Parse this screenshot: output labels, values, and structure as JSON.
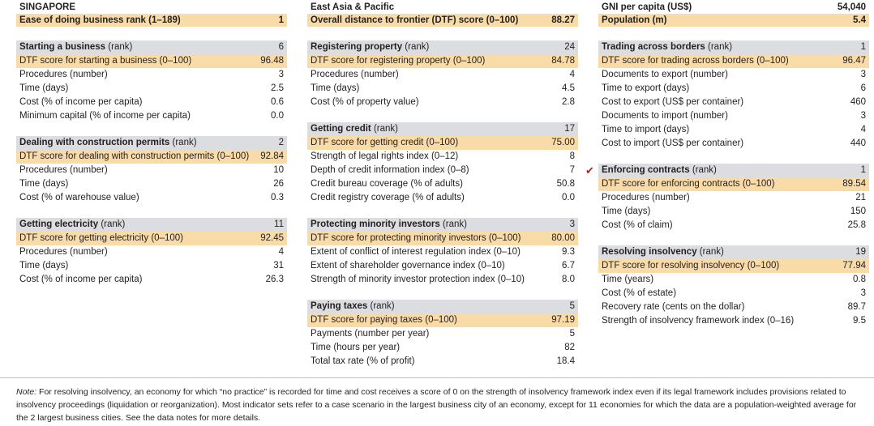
{
  "header": {
    "left": {
      "name": "SINGAPORE",
      "row2_label": "Ease of doing business rank (1–189)",
      "row2_value": "1"
    },
    "middle": {
      "name": "East Asia & Pacific",
      "row2_label": "Overall distance to frontier (DTF) score (0–100)",
      "row2_value": "88.27"
    },
    "right": {
      "name": "GNI per capita (US$)",
      "name_value": "54,040",
      "row2_label": "Population (m)",
      "row2_value": "5.4"
    }
  },
  "sections": [
    {
      "title": "Starting a business",
      "title_suffix": " (rank)",
      "rank": "6",
      "rows": [
        {
          "label": "DTF score for starting a business (0–100)",
          "value": "96.48",
          "dtf": true
        },
        {
          "label": "Procedures (number)",
          "value": "3"
        },
        {
          "label": "Time (days)",
          "value": "2.5"
        },
        {
          "label": "Cost (% of income per capita)",
          "value": "0.6"
        },
        {
          "label": "Minimum capital (% of income per capita)",
          "value": "0.0"
        }
      ]
    },
    {
      "title": "Dealing with construction permits",
      "title_suffix": " (rank)",
      "rank": "2",
      "rows": [
        {
          "label": "DTF score for dealing with construction permits (0–100)",
          "value": "92.84",
          "dtf": true
        },
        {
          "label": "Procedures (number)",
          "value": "10"
        },
        {
          "label": "Time (days)",
          "value": "26"
        },
        {
          "label": "Cost (% of warehouse value)",
          "value": "0.3"
        }
      ]
    },
    {
      "title": "Getting electricity",
      "title_suffix": " (rank)",
      "rank": "11",
      "rows": [
        {
          "label": "DTF score for getting electricity (0–100)",
          "value": "92.45",
          "dtf": true
        },
        {
          "label": "Procedures (number)",
          "value": "4"
        },
        {
          "label": "Time (days)",
          "value": "31"
        },
        {
          "label": "Cost (% of income per capita)",
          "value": "26.3"
        }
      ]
    },
    {
      "title": "Registering property",
      "title_suffix": " (rank)",
      "rank": "24",
      "rows": [
        {
          "label": "DTF score for registering property (0–100)",
          "value": "84.78",
          "dtf": true
        },
        {
          "label": "Procedures (number)",
          "value": "4"
        },
        {
          "label": "Time (days)",
          "value": "4.5"
        },
        {
          "label": "Cost (% of property value)",
          "value": "2.8"
        }
      ]
    },
    {
      "title": "Getting credit",
      "title_suffix": " (rank)",
      "rank": "17",
      "rows": [
        {
          "label": "DTF score for getting credit (0–100)",
          "value": "75.00",
          "dtf": true
        },
        {
          "label": "Strength of legal rights index (0–12)",
          "value": "8"
        },
        {
          "label": "Depth of credit information index (0–8)",
          "value": "7"
        },
        {
          "label": "Credit bureau coverage (% of adults)",
          "value": "50.8"
        },
        {
          "label": "Credit registry coverage (% of adults)",
          "value": "0.0"
        }
      ]
    },
    {
      "title": "Protecting minority investors",
      "title_suffix": " (rank)",
      "rank": "3",
      "rows": [
        {
          "label": "DTF score for protecting minority investors (0–100)",
          "value": "80.00",
          "dtf": true
        },
        {
          "label": "Extent of conflict of interest regulation index (0–10)",
          "value": "9.3"
        },
        {
          "label": "Extent of shareholder governance index (0–10)",
          "value": "6.7"
        },
        {
          "label": "Strength of minority investor protection index (0–10)",
          "value": "8.0"
        }
      ]
    },
    {
      "title": "Paying taxes",
      "title_suffix": " (rank)",
      "rank": "5",
      "rows": [
        {
          "label": "DTF score for paying taxes (0–100)",
          "value": "97.19",
          "dtf": true
        },
        {
          "label": "Payments (number per year)",
          "value": "5"
        },
        {
          "label": "Time (hours per year)",
          "value": "82"
        },
        {
          "label": "Total tax rate (% of profit)",
          "value": "18.4"
        }
      ]
    },
    {
      "title": "Trading across borders",
      "title_suffix": " (rank)",
      "rank": "1",
      "rows": [
        {
          "label": "DTF score for trading across borders (0–100)",
          "value": "96.47",
          "dtf": true
        },
        {
          "label": "Documents to export (number)",
          "value": "3"
        },
        {
          "label": "Time to export (days)",
          "value": "6"
        },
        {
          "label": "Cost to export (US$ per container)",
          "value": "460"
        },
        {
          "label": "Documents to import (number)",
          "value": "3"
        },
        {
          "label": "Time to import (days)",
          "value": "4"
        },
        {
          "label": "Cost to import (US$ per container)",
          "value": "440"
        }
      ]
    },
    {
      "title": "Enforcing contracts",
      "title_suffix": " (rank)",
      "rank": "1",
      "check": "✔",
      "rows": [
        {
          "label": "DTF score for enforcing contracts (0–100)",
          "value": "89.54",
          "dtf": true
        },
        {
          "label": "Procedures (number)",
          "value": "21"
        },
        {
          "label": "Time (days)",
          "value": "150"
        },
        {
          "label": "Cost (% of claim)",
          "value": "25.8"
        }
      ]
    },
    {
      "title": "Resolving insolvency",
      "title_suffix": " (rank)",
      "rank": "19",
      "rows": [
        {
          "label": "DTF score for resolving insolvency (0–100)",
          "value": "77.94",
          "dtf": true
        },
        {
          "label": "Time (years)",
          "value": "0.8"
        },
        {
          "label": "Cost (% of estate)",
          "value": "3"
        },
        {
          "label": "Recovery rate (cents on the dollar)",
          "value": "89.7"
        },
        {
          "label": "Strength of insolvency framework index (0–16)",
          "value": "9.5"
        }
      ]
    }
  ],
  "note": {
    "prefix": "Note:",
    "text": " For resolving insolvency, an economy for which “no practice” is recorded for time and cost receives a score of 0 on the strength of insolvency framework index even if its legal framework includes provisions related to insolvency proceedings (liquidation or reorganization). Most indicator sets refer to a case scenario in the largest business city of an economy, except for 11 economies for which the data are a population-weighted average for the 2 largest business cities. See the data notes for more details."
  }
}
